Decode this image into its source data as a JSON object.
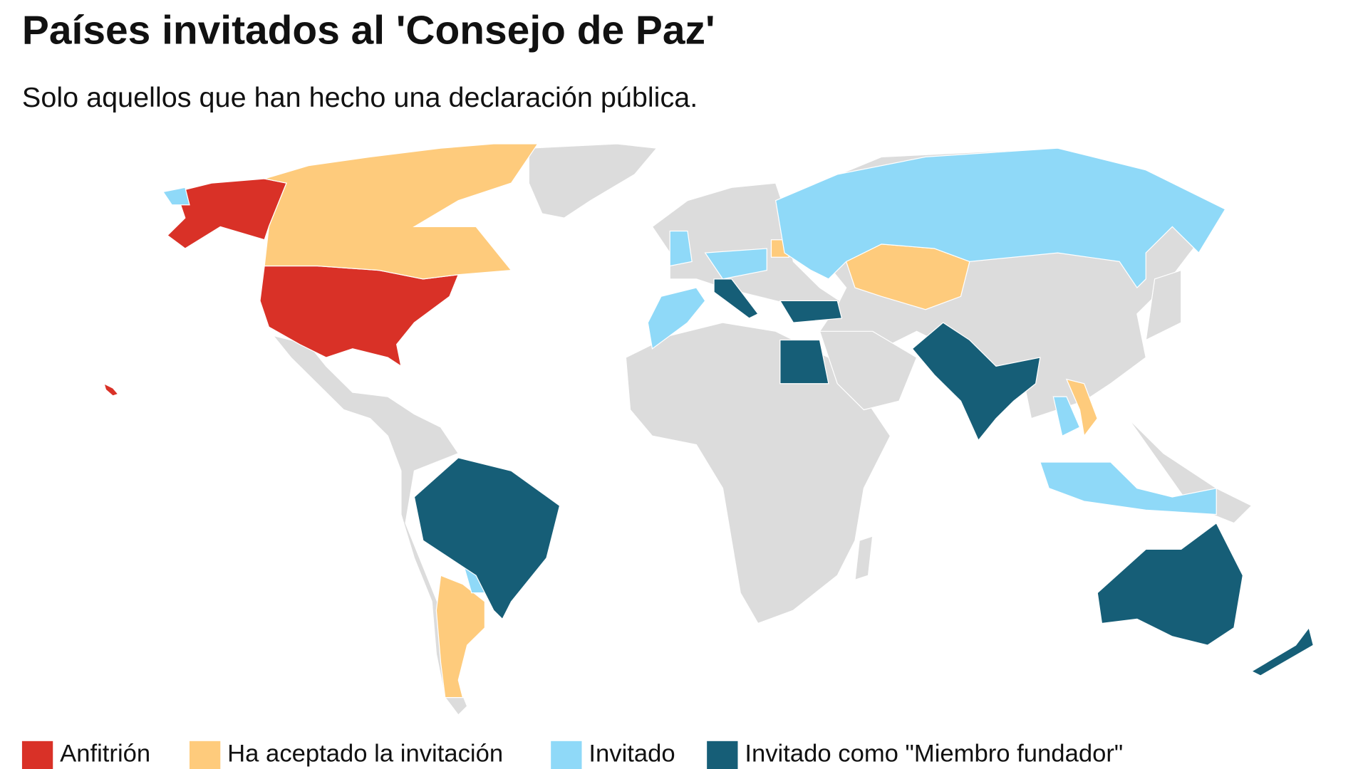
{
  "title": "Países invitados al 'Consejo de Paz'",
  "subtitle": "Solo aquellos que han hecho una declaración pública.",
  "legend": [
    {
      "label": "Anfitrión",
      "color": "#d93127"
    },
    {
      "label": "Ha aceptado la invitación",
      "color": "#fecb7c"
    },
    {
      "label": "Invitado",
      "color": "#8fd9f8"
    },
    {
      "label": "Invitado como \"Miembro fundador\"",
      "color": "#165e77"
    }
  ]
}
